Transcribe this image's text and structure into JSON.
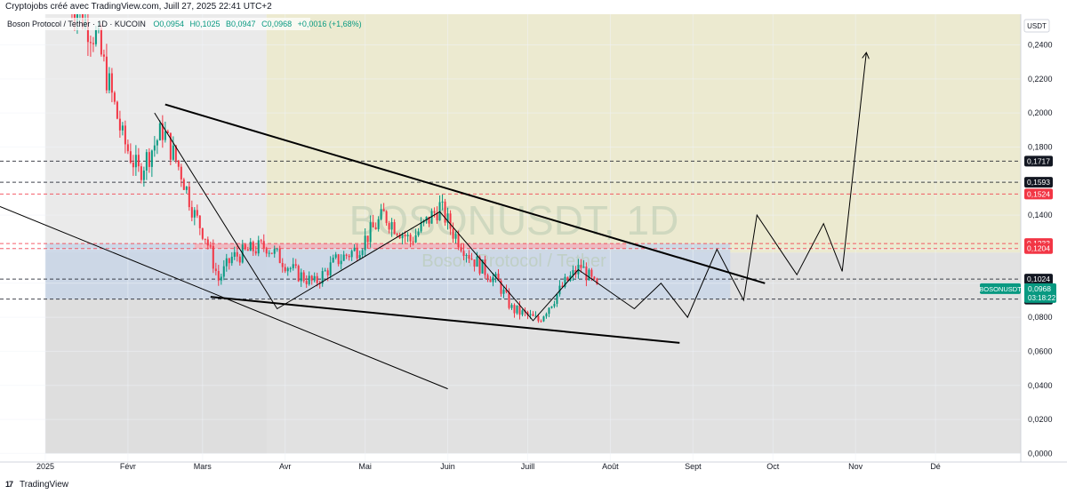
{
  "header": {
    "credit": "Cryptojobs créé avec TradingView.com, Juill 27, 2025 22:41 UTC+2"
  },
  "legend": {
    "symbol": "Boson Protocol / Tether · 1D · KUCOIN",
    "open": "O0,0954",
    "high": "H0,1025",
    "low": "B0,0947",
    "close": "C0,0968",
    "change": "+0,0016 (+1,68%)"
  },
  "watermark": {
    "ticker": "BOSONUSDT, 1D",
    "name": "Boson Protocol / Tether"
  },
  "currency_button": "USDT",
  "footer": {
    "logo": "17",
    "brand": "TradingView"
  },
  "colors": {
    "up": "#089981",
    "down": "#f23645",
    "line": "#000000",
    "price_tag": "#089981",
    "red_level": "#f23645",
    "dark_level": "#131722"
  },
  "chart_data": {
    "type": "candlestick",
    "symbol": "BOSONUSDT",
    "interval": "1D",
    "exchange": "KUCOIN",
    "ylim": [
      -0.005,
      0.258
    ],
    "y_ticks": [
      0.0,
      0.02,
      0.04,
      0.06,
      0.08,
      0.1,
      0.12,
      0.14,
      0.16,
      0.18,
      0.2,
      0.22,
      0.24
    ],
    "y_tick_labels": [
      "0,0000",
      "0,0200",
      "0,0400",
      "0,0600",
      "0,0800",
      "0,1000",
      "0,1200",
      "0,1400",
      "0,1600",
      "0,1800",
      "0,2000",
      "0,2200",
      "0,2400"
    ],
    "x_start": "2024-12-15",
    "x_end": "2026-01-02",
    "x_ticks": [
      {
        "label": "2025",
        "date": "2025-01-01"
      },
      {
        "label": "Févr",
        "date": "2025-02-01"
      },
      {
        "label": "Mars",
        "date": "2025-03-01"
      },
      {
        "label": "Avr",
        "date": "2025-04-01"
      },
      {
        "label": "Mai",
        "date": "2025-05-01"
      },
      {
        "label": "Juin",
        "date": "2025-06-01"
      },
      {
        "label": "Juill",
        "date": "2025-07-01"
      },
      {
        "label": "Août",
        "date": "2025-08-01"
      },
      {
        "label": "Sept",
        "date": "2025-09-01"
      },
      {
        "label": "Oct",
        "date": "2025-10-01"
      },
      {
        "label": "Nov",
        "date": "2025-11-01"
      },
      {
        "label": "Dé",
        "date": "2025-12-01"
      }
    ],
    "close_keypoints": [
      [
        "2025-01-10",
        0.268
      ],
      [
        "2025-01-20",
        0.245
      ],
      [
        "2025-01-26",
        0.21
      ],
      [
        "2025-01-30",
        0.185
      ],
      [
        "2025-02-05",
        0.165
      ],
      [
        "2025-02-14",
        0.19
      ],
      [
        "2025-02-21",
        0.165
      ],
      [
        "2025-02-26",
        0.14
      ],
      [
        "2025-03-02",
        0.128
      ],
      [
        "2025-03-07",
        0.102
      ],
      [
        "2025-03-12",
        0.115
      ],
      [
        "2025-03-20",
        0.12
      ],
      [
        "2025-03-25",
        0.122
      ],
      [
        "2025-04-05",
        0.106
      ],
      [
        "2025-04-12",
        0.1
      ],
      [
        "2025-04-20",
        0.113
      ],
      [
        "2025-04-28",
        0.12
      ],
      [
        "2025-05-08",
        0.14
      ],
      [
        "2025-05-18",
        0.125
      ],
      [
        "2025-05-29",
        0.145
      ],
      [
        "2025-06-03",
        0.13
      ],
      [
        "2025-06-10",
        0.115
      ],
      [
        "2025-06-20",
        0.1
      ],
      [
        "2025-06-25",
        0.085
      ],
      [
        "2025-07-05",
        0.078
      ],
      [
        "2025-07-15",
        0.1
      ],
      [
        "2025-07-21",
        0.11
      ],
      [
        "2025-07-27",
        0.0968
      ]
    ],
    "horizontal_levels": [
      {
        "price": 0.1717,
        "label": "0,1717",
        "style": "dashed",
        "color": "#131722"
      },
      {
        "price": 0.1593,
        "label": "0,1593",
        "style": "dashed",
        "color": "#131722"
      },
      {
        "price": 0.1524,
        "label": "0,1524",
        "style": "dashed",
        "color": "#f23645"
      },
      {
        "price": 0.1233,
        "label": "0,1233",
        "style": "dashed",
        "color": "#f23645"
      },
      {
        "price": 0.1204,
        "label": "0,1204",
        "style": "dashed",
        "color": "#f23645"
      },
      {
        "price": 0.1024,
        "label": "0,1024",
        "style": "dashed",
        "color": "#131722"
      },
      {
        "price": 0.0907,
        "label": "0,0907",
        "style": "dashed",
        "color": "#131722"
      }
    ],
    "last_price": {
      "price": 0.0968,
      "label": "0,0968",
      "countdown": "03:18:22",
      "symbol": "BOSONUSDT"
    },
    "zones": [
      {
        "from": "2025-01-01",
        "to": "2025-03-25",
        "low": 0.0,
        "high": 0.258,
        "color": "#e6e6e6"
      },
      {
        "from": "2025-03-25",
        "to": "2026-01-02",
        "low": 0.118,
        "high": 0.258,
        "color": "#e9e6c8"
      },
      {
        "from": "2025-01-01",
        "to": "2026-01-02",
        "low": 0.0,
        "high": 0.118,
        "color": "#dcdcdc"
      },
      {
        "from": "2025-01-01",
        "to": "2025-09-15",
        "low": 0.0907,
        "high": 0.1233,
        "color": "#c9d6e8"
      },
      {
        "from": "2025-02-26",
        "to": "2025-08-07",
        "low": 0.1204,
        "high": 0.1233,
        "color": "#f3b4bb"
      }
    ],
    "trendlines": [
      {
        "points": [
          [
            "2025-02-15",
            0.205
          ],
          [
            "2025-09-28",
            0.1
          ]
        ],
        "width": 2
      },
      {
        "points": [
          [
            "2025-03-04",
            0.092
          ],
          [
            "2025-08-27",
            0.065
          ]
        ],
        "width": 2
      },
      {
        "points": [
          [
            "2024-12-15",
            0.145
          ],
          [
            "2025-06-01",
            0.038
          ]
        ],
        "width": 1
      },
      {
        "points": [
          [
            "2025-02-11",
            0.2
          ],
          [
            "2025-03-29",
            0.085
          ],
          [
            "2025-05-29",
            0.142
          ],
          [
            "2025-07-03",
            0.078
          ],
          [
            "2025-07-20",
            0.108
          ],
          [
            "2025-08-10",
            0.085
          ],
          [
            "2025-08-20",
            0.1
          ],
          [
            "2025-08-30",
            0.08
          ],
          [
            "2025-09-10",
            0.12
          ],
          [
            "2025-09-20",
            0.09
          ],
          [
            "2025-09-25",
            0.14
          ],
          [
            "2025-10-10",
            0.105
          ],
          [
            "2025-10-20",
            0.135
          ],
          [
            "2025-10-27",
            0.107
          ],
          [
            "2025-11-05",
            0.235
          ]
        ],
        "width": 1,
        "arrow": true
      }
    ]
  }
}
